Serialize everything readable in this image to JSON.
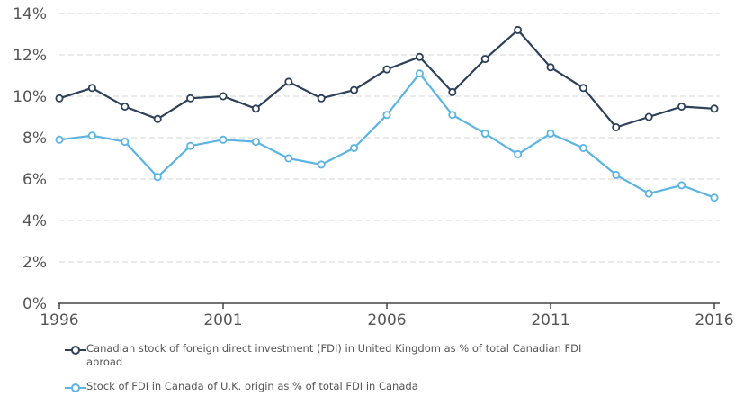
{
  "chart_data": {
    "type": "line",
    "x": [
      1996,
      1997,
      1998,
      1999,
      2000,
      2001,
      2002,
      2003,
      2004,
      2005,
      2006,
      2007,
      2008,
      2009,
      2010,
      2011,
      2012,
      2013,
      2014,
      2015,
      2016
    ],
    "x_tick_labels": [
      "1996",
      "2001",
      "2006",
      "2011",
      "2016"
    ],
    "x_ticks": [
      1996,
      2001,
      2006,
      2011,
      2016
    ],
    "y_tick_labels": [
      "0%",
      "2%",
      "4%",
      "6%",
      "8%",
      "10%",
      "12%",
      "14%"
    ],
    "y_ticks": [
      0,
      2,
      4,
      6,
      8,
      10,
      12,
      14
    ],
    "ylim": [
      0,
      14
    ],
    "xlim": [
      1996,
      2016
    ],
    "title": "",
    "xlabel": "",
    "ylabel": "",
    "grid": "horizontal dashed",
    "legend_position": "bottom",
    "series": [
      {
        "name": "Canadian stock of foreign direct investment (FDI) in United Kingdom as % of total Canadian FDI abroad",
        "color": "#2c4059",
        "values": [
          9.9,
          10.4,
          9.5,
          8.9,
          9.9,
          10.0,
          9.4,
          10.7,
          9.9,
          10.3,
          11.3,
          11.9,
          10.2,
          11.8,
          13.2,
          11.4,
          10.4,
          8.5,
          9.0,
          9.5,
          9.4
        ]
      },
      {
        "name": "Stock of FDI in Canada of U.K. origin as % of total FDI in Canada",
        "color": "#5bb4e2",
        "values": [
          7.9,
          8.1,
          7.8,
          6.1,
          7.6,
          7.9,
          7.8,
          7.0,
          6.7,
          7.5,
          9.1,
          11.1,
          9.1,
          8.2,
          7.2,
          8.2,
          7.5,
          6.2,
          5.3,
          5.7,
          5.1
        ]
      }
    ]
  }
}
